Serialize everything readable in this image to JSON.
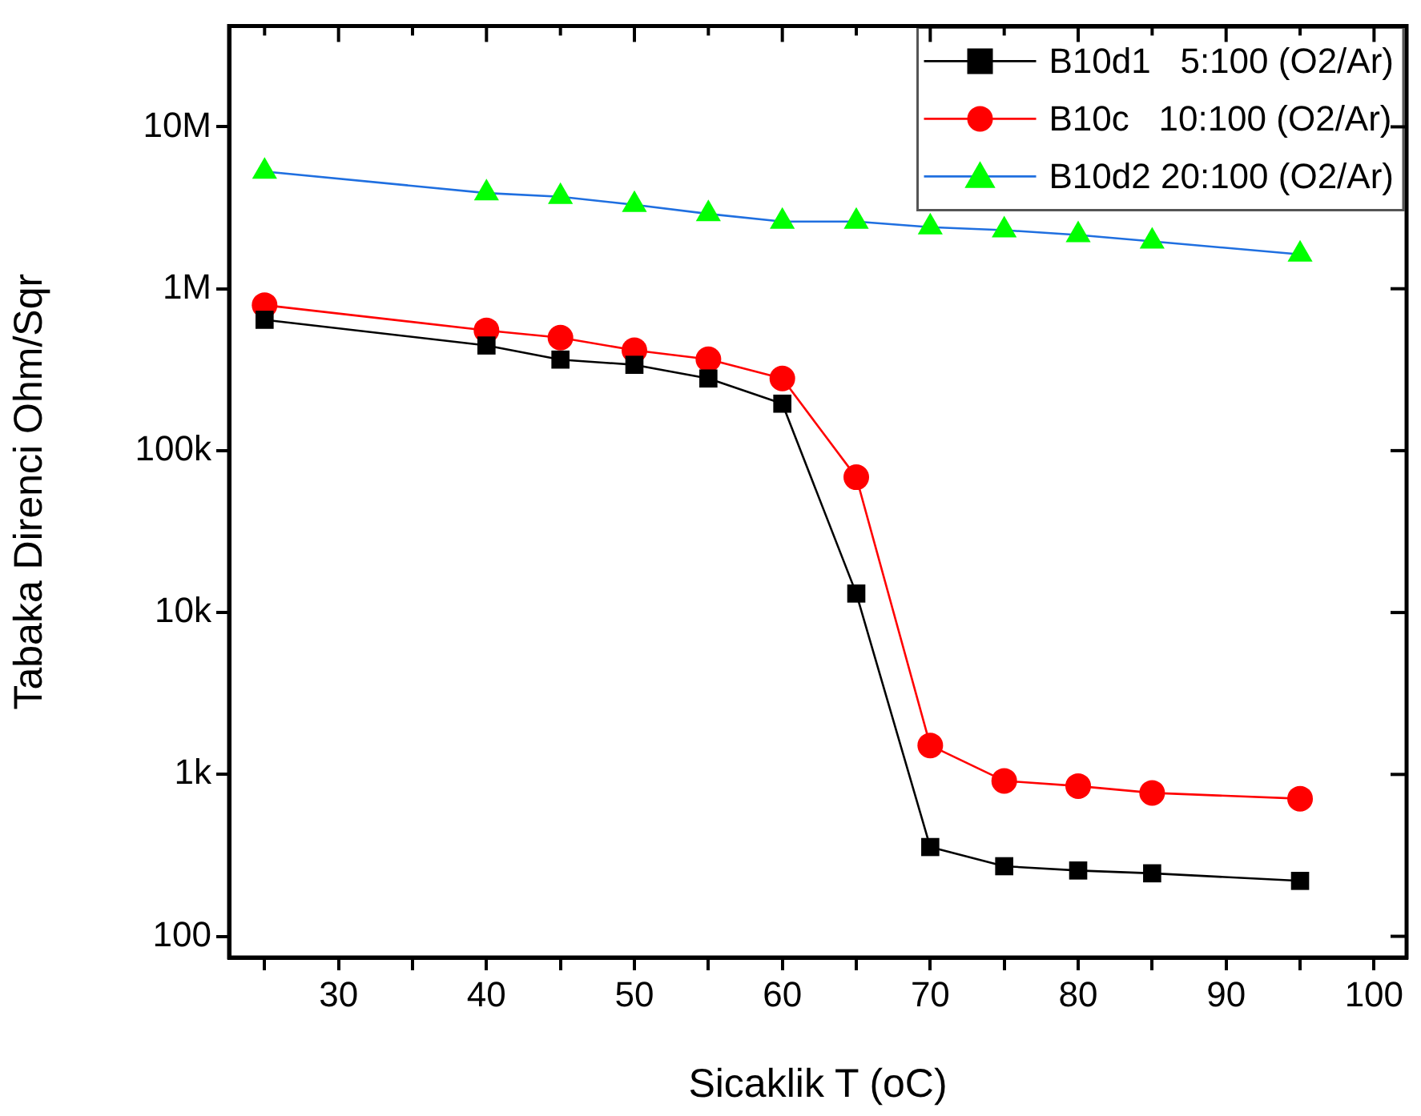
{
  "chart_data": {
    "type": "line",
    "xlabel": "Sicaklik T (oC)",
    "ylabel": "Tabaka Direnci Ohm/Sqr",
    "x": [
      25,
      40,
      45,
      50,
      55,
      60,
      65,
      70,
      75,
      80,
      85,
      95
    ],
    "series": [
      {
        "name": "B10d1   5:100 (O2/Ar)",
        "color": "#000000",
        "marker": "square",
        "values": [
          643000,
          446000,
          365000,
          339000,
          279000,
          195000,
          13100,
          356,
          271,
          255,
          245,
          220
        ]
      },
      {
        "name": "B10c   10:100 (O2/Ar)",
        "color": "#ff0000",
        "marker": "circle",
        "values": [
          792000,
          553000,
          499000,
          417000,
          367000,
          279000,
          68500,
          1510,
          912,
          847,
          769,
          708
        ]
      },
      {
        "name": "B10d2 20:100 (O2/Ar)",
        "color": "#1f6fe0",
        "colors": [
          "#00ff00",
          "#00ff00",
          "#00ff00",
          "#00ff00",
          "#00ff00",
          "#00ff00",
          "#00ff00",
          "#00ff00",
          "#00ff00",
          "#00ff00",
          "#00ff00",
          "#00ff00"
        ],
        "marker": "triangle",
        "values": [
          5300000,
          3900000,
          3700000,
          3300000,
          2900000,
          2600000,
          2600000,
          2400000,
          2300000,
          2150000,
          1960000,
          1630000
        ]
      }
    ],
    "log": "y",
    "xlim": [
      22.6,
      102.2
    ],
    "ylim": [
      74,
      42000000
    ],
    "xticks": [
      {
        "value": 25,
        "label": null
      },
      30,
      {
        "value": 35,
        "label": null
      },
      40,
      {
        "value": 45,
        "label": null
      },
      50,
      {
        "value": 55,
        "label": null
      },
      60,
      {
        "value": 65,
        "label": null
      },
      70,
      {
        "value": 75,
        "label": null
      },
      80,
      {
        "value": 85,
        "label": null
      },
      90,
      {
        "value": 95,
        "label": null
      },
      100
    ],
    "yticks": [
      100,
      {
        "value": 1000,
        "label": "1k"
      },
      {
        "value": 10000,
        "label": "10k"
      },
      {
        "value": 100000,
        "label": "100k"
      },
      {
        "value": 1000000,
        "label": "1M"
      },
      {
        "value": 10000000,
        "label": "10M"
      }
    ],
    "grid": false,
    "legend": "top right",
    "line_style": "solid"
  }
}
